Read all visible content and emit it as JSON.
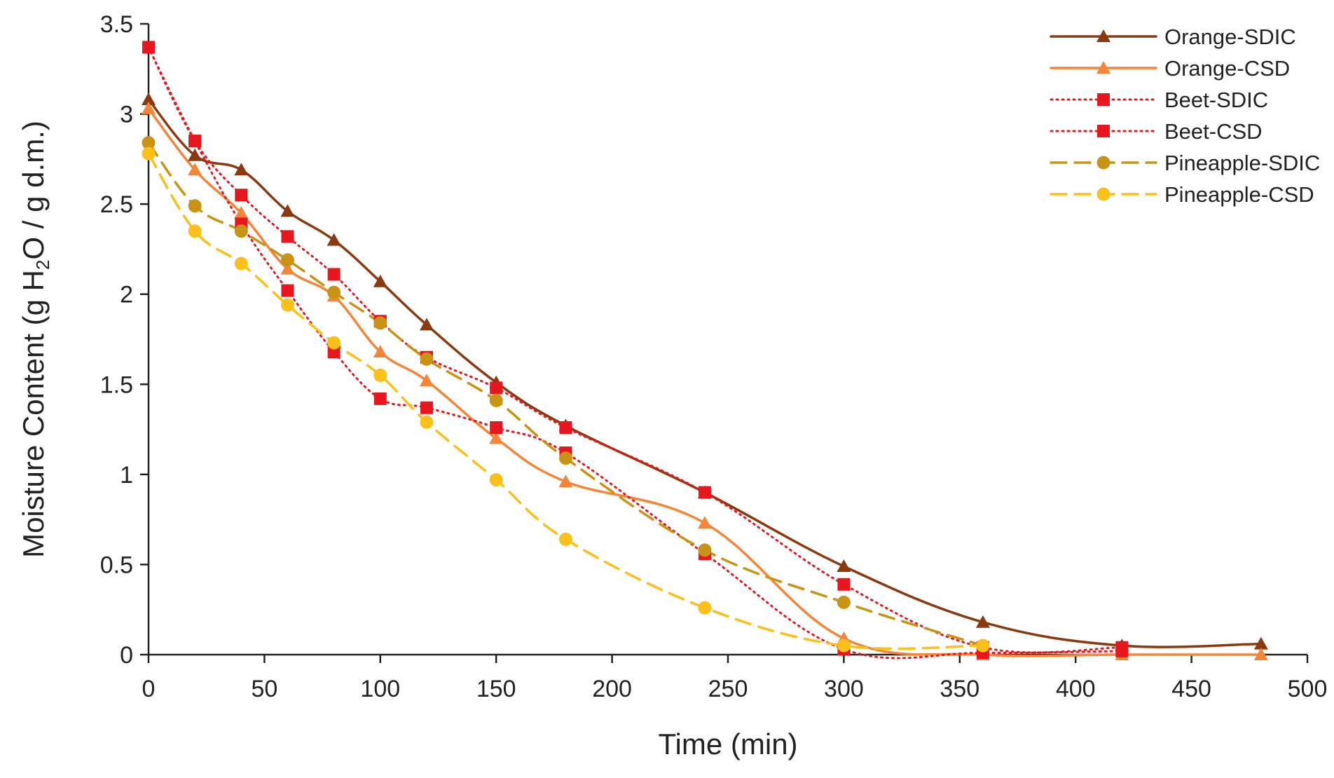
{
  "chart_data": {
    "type": "line",
    "title": "",
    "xlabel": "Time (min)",
    "ylabel": {
      "prefix": "Moisture Content (g H",
      "sub": "2",
      "suffix": "O / g d.m.)"
    },
    "xlim": [
      0,
      500
    ],
    "ylim": [
      0,
      3.5
    ],
    "xticks": [
      0,
      50,
      100,
      150,
      200,
      250,
      300,
      350,
      400,
      450,
      500
    ],
    "yticks": [
      0,
      0.5,
      1,
      1.5,
      2,
      2.5,
      3,
      3.5
    ],
    "ytick_labels": [
      "0",
      "0.5",
      "1",
      "1.5",
      "2",
      "2.5",
      "3",
      "3.5"
    ],
    "grid": false,
    "legend_position": "top-right",
    "series": [
      {
        "name": "Orange-SDIC",
        "color": "#8B3A10",
        "dash": "solid",
        "marker": "triangle",
        "x": [
          0,
          20,
          40,
          60,
          80,
          100,
          120,
          150,
          180,
          240,
          300,
          360,
          420,
          480
        ],
        "y": [
          3.08,
          2.77,
          2.69,
          2.46,
          2.3,
          2.07,
          1.83,
          1.51,
          1.27,
          0.9,
          0.49,
          0.18,
          0.05,
          0.06
        ]
      },
      {
        "name": "Orange-CSD",
        "color": "#F4863A",
        "dash": "solid",
        "marker": "triangle",
        "x": [
          0,
          20,
          40,
          60,
          80,
          100,
          120,
          150,
          180,
          240,
          300,
          360,
          420,
          480
        ],
        "y": [
          3.03,
          2.69,
          2.45,
          2.14,
          1.99,
          1.68,
          1.52,
          1.2,
          0.96,
          0.73,
          0.09,
          0.0,
          0.0,
          0.0
        ]
      },
      {
        "name": "Beet-SDIC",
        "color": "#E8171F",
        "dash": "dotted",
        "marker": "square",
        "x": [
          0,
          20,
          40,
          60,
          80,
          100,
          120,
          150,
          180,
          240,
          300,
          360,
          420
        ],
        "y": [
          3.37,
          2.85,
          2.55,
          2.32,
          2.11,
          1.85,
          1.65,
          1.48,
          1.26,
          0.9,
          0.39,
          0.04,
          0.04
        ]
      },
      {
        "name": "Beet-CSD",
        "color": "#E8171F",
        "dash": "dotted",
        "marker": "square",
        "x": [
          0,
          20,
          40,
          60,
          80,
          100,
          120,
          150,
          180,
          240,
          300,
          360,
          420
        ],
        "y": [
          3.37,
          2.85,
          2.39,
          2.02,
          1.68,
          1.42,
          1.37,
          1.26,
          1.12,
          0.56,
          0.03,
          0.01,
          0.02
        ]
      },
      {
        "name": "Pineapple-SDIC",
        "color": "#C99416",
        "dash": "dashed",
        "marker": "circle",
        "x": [
          0,
          20,
          40,
          60,
          80,
          100,
          120,
          150,
          180,
          240,
          300,
          360
        ],
        "y": [
          2.84,
          2.49,
          2.35,
          2.19,
          2.01,
          1.84,
          1.64,
          1.41,
          1.09,
          0.58,
          0.29,
          0.05
        ]
      },
      {
        "name": "Pineapple-CSD",
        "color": "#FBC01A",
        "dash": "dashed",
        "marker": "circle",
        "x": [
          0,
          20,
          40,
          60,
          80,
          100,
          120,
          150,
          180,
          240,
          300,
          360
        ],
        "y": [
          2.78,
          2.35,
          2.17,
          1.94,
          1.73,
          1.55,
          1.29,
          0.97,
          0.64,
          0.26,
          0.05,
          0.05
        ]
      }
    ]
  }
}
